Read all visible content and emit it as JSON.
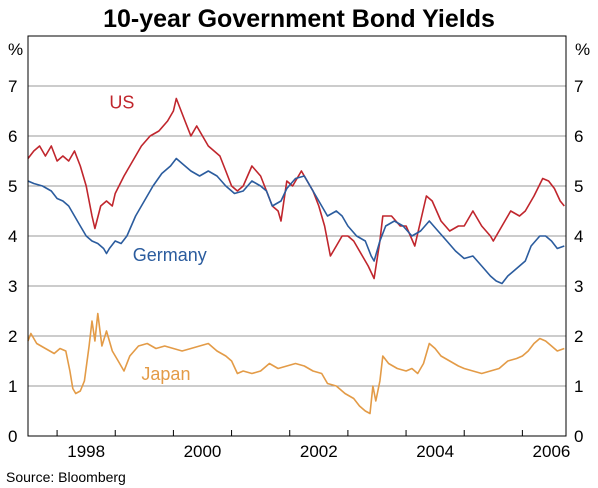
{
  "chart_data": {
    "type": "line",
    "title": "10-year Government Bond Yields",
    "unit_left": "%",
    "unit_right": "%",
    "ylim": [
      0,
      8
    ],
    "yticks": [
      0,
      1,
      2,
      3,
      4,
      5,
      6,
      7
    ],
    "xlim": [
      1997.5,
      2006.75
    ],
    "xticks": [
      {
        "label": "1998",
        "x": 1998
      },
      {
        "label": "2000",
        "x": 2000
      },
      {
        "label": "2002",
        "x": 2002
      },
      {
        "label": "2004",
        "x": 2004
      },
      {
        "label": "2006",
        "x": 2006
      }
    ],
    "grid": true,
    "source": "Source: Bloomberg",
    "series": [
      {
        "name": "US",
        "color": "#c0262d",
        "label_at": [
          1998.9,
          6.55
        ],
        "points": [
          [
            1997.5,
            5.55
          ],
          [
            1997.6,
            5.7
          ],
          [
            1997.7,
            5.8
          ],
          [
            1997.8,
            5.6
          ],
          [
            1997.9,
            5.8
          ],
          [
            1998.0,
            5.5
          ],
          [
            1998.1,
            5.6
          ],
          [
            1998.2,
            5.5
          ],
          [
            1998.3,
            5.7
          ],
          [
            1998.4,
            5.4
          ],
          [
            1998.5,
            5.0
          ],
          [
            1998.6,
            4.4
          ],
          [
            1998.65,
            4.15
          ],
          [
            1998.75,
            4.6
          ],
          [
            1998.85,
            4.7
          ],
          [
            1998.95,
            4.6
          ],
          [
            1999.0,
            4.85
          ],
          [
            1999.15,
            5.2
          ],
          [
            1999.3,
            5.5
          ],
          [
            1999.45,
            5.8
          ],
          [
            1999.6,
            6.0
          ],
          [
            1999.75,
            6.1
          ],
          [
            1999.9,
            6.3
          ],
          [
            2000.0,
            6.5
          ],
          [
            2000.05,
            6.75
          ],
          [
            2000.1,
            6.6
          ],
          [
            2000.2,
            6.3
          ],
          [
            2000.3,
            6.0
          ],
          [
            2000.4,
            6.2
          ],
          [
            2000.5,
            6.0
          ],
          [
            2000.6,
            5.8
          ],
          [
            2000.7,
            5.7
          ],
          [
            2000.8,
            5.6
          ],
          [
            2000.9,
            5.3
          ],
          [
            2001.0,
            5.0
          ],
          [
            2001.1,
            4.9
          ],
          [
            2001.2,
            5.0
          ],
          [
            2001.35,
            5.4
          ],
          [
            2001.5,
            5.2
          ],
          [
            2001.6,
            4.9
          ],
          [
            2001.7,
            4.6
          ],
          [
            2001.8,
            4.5
          ],
          [
            2001.85,
            4.3
          ],
          [
            2001.95,
            5.1
          ],
          [
            2002.05,
            5.0
          ],
          [
            2002.2,
            5.3
          ],
          [
            2002.3,
            5.1
          ],
          [
            2002.4,
            4.9
          ],
          [
            2002.5,
            4.6
          ],
          [
            2002.6,
            4.2
          ],
          [
            2002.7,
            3.6
          ],
          [
            2002.8,
            3.8
          ],
          [
            2002.9,
            4.0
          ],
          [
            2003.0,
            4.0
          ],
          [
            2003.1,
            3.9
          ],
          [
            2003.25,
            3.6
          ],
          [
            2003.35,
            3.4
          ],
          [
            2003.45,
            3.15
          ],
          [
            2003.55,
            3.9
          ],
          [
            2003.6,
            4.4
          ],
          [
            2003.75,
            4.4
          ],
          [
            2003.9,
            4.2
          ],
          [
            2004.0,
            4.2
          ],
          [
            2004.15,
            3.8
          ],
          [
            2004.25,
            4.3
          ],
          [
            2004.35,
            4.8
          ],
          [
            2004.45,
            4.7
          ],
          [
            2004.6,
            4.3
          ],
          [
            2004.75,
            4.1
          ],
          [
            2004.9,
            4.2
          ],
          [
            2005.0,
            4.2
          ],
          [
            2005.15,
            4.5
          ],
          [
            2005.3,
            4.2
          ],
          [
            2005.45,
            4.0
          ],
          [
            2005.5,
            3.9
          ],
          [
            2005.65,
            4.2
          ],
          [
            2005.8,
            4.5
          ],
          [
            2005.95,
            4.4
          ],
          [
            2006.05,
            4.5
          ],
          [
            2006.2,
            4.8
          ],
          [
            2006.35,
            5.15
          ],
          [
            2006.45,
            5.1
          ],
          [
            2006.55,
            4.95
          ],
          [
            2006.65,
            4.7
          ],
          [
            2006.72,
            4.6
          ]
        ]
      },
      {
        "name": "Germany",
        "color": "#2b5c9e",
        "label_at": [
          1999.3,
          3.5
        ],
        "points": [
          [
            1997.5,
            5.1
          ],
          [
            1997.6,
            5.05
          ],
          [
            1997.75,
            5.0
          ],
          [
            1997.9,
            4.9
          ],
          [
            1998.0,
            4.75
          ],
          [
            1998.1,
            4.7
          ],
          [
            1998.2,
            4.6
          ],
          [
            1998.3,
            4.4
          ],
          [
            1998.4,
            4.2
          ],
          [
            1998.5,
            4.0
          ],
          [
            1998.6,
            3.9
          ],
          [
            1998.7,
            3.85
          ],
          [
            1998.8,
            3.75
          ],
          [
            1998.85,
            3.65
          ],
          [
            1998.9,
            3.75
          ],
          [
            1999.0,
            3.9
          ],
          [
            1999.1,
            3.85
          ],
          [
            1999.2,
            4.0
          ],
          [
            1999.35,
            4.4
          ],
          [
            1999.5,
            4.7
          ],
          [
            1999.65,
            5.0
          ],
          [
            1999.8,
            5.25
          ],
          [
            1999.95,
            5.4
          ],
          [
            2000.05,
            5.55
          ],
          [
            2000.15,
            5.45
          ],
          [
            2000.3,
            5.3
          ],
          [
            2000.45,
            5.2
          ],
          [
            2000.6,
            5.3
          ],
          [
            2000.75,
            5.2
          ],
          [
            2000.9,
            5.0
          ],
          [
            2001.05,
            4.85
          ],
          [
            2001.2,
            4.9
          ],
          [
            2001.35,
            5.1
          ],
          [
            2001.5,
            5.0
          ],
          [
            2001.6,
            4.9
          ],
          [
            2001.7,
            4.6
          ],
          [
            2001.85,
            4.7
          ],
          [
            2001.95,
            4.95
          ],
          [
            2002.1,
            5.15
          ],
          [
            2002.25,
            5.2
          ],
          [
            2002.35,
            5.0
          ],
          [
            2002.5,
            4.7
          ],
          [
            2002.65,
            4.4
          ],
          [
            2002.8,
            4.5
          ],
          [
            2002.9,
            4.4
          ],
          [
            2003.0,
            4.2
          ],
          [
            2003.15,
            4.0
          ],
          [
            2003.3,
            3.9
          ],
          [
            2003.4,
            3.6
          ],
          [
            2003.45,
            3.5
          ],
          [
            2003.55,
            3.9
          ],
          [
            2003.65,
            4.2
          ],
          [
            2003.8,
            4.3
          ],
          [
            2003.95,
            4.2
          ],
          [
            2004.1,
            4.0
          ],
          [
            2004.25,
            4.1
          ],
          [
            2004.4,
            4.3
          ],
          [
            2004.55,
            4.1
          ],
          [
            2004.7,
            3.9
          ],
          [
            2004.85,
            3.7
          ],
          [
            2005.0,
            3.55
          ],
          [
            2005.15,
            3.6
          ],
          [
            2005.3,
            3.4
          ],
          [
            2005.45,
            3.2
          ],
          [
            2005.55,
            3.1
          ],
          [
            2005.65,
            3.05
          ],
          [
            2005.75,
            3.2
          ],
          [
            2005.85,
            3.3
          ],
          [
            2005.95,
            3.4
          ],
          [
            2006.05,
            3.5
          ],
          [
            2006.15,
            3.8
          ],
          [
            2006.3,
            4.0
          ],
          [
            2006.4,
            4.0
          ],
          [
            2006.5,
            3.9
          ],
          [
            2006.6,
            3.75
          ],
          [
            2006.72,
            3.8
          ]
        ]
      },
      {
        "name": "Japan",
        "color": "#e39b47",
        "label_at": [
          1999.45,
          1.12
        ],
        "points": [
          [
            1997.5,
            1.9
          ],
          [
            1997.55,
            2.05
          ],
          [
            1997.65,
            1.85
          ],
          [
            1997.8,
            1.75
          ],
          [
            1997.95,
            1.65
          ],
          [
            1998.05,
            1.75
          ],
          [
            1998.15,
            1.7
          ],
          [
            1998.22,
            1.3
          ],
          [
            1998.27,
            0.95
          ],
          [
            1998.32,
            0.85
          ],
          [
            1998.4,
            0.9
          ],
          [
            1998.47,
            1.1
          ],
          [
            1998.55,
            1.8
          ],
          [
            1998.6,
            2.3
          ],
          [
            1998.65,
            1.9
          ],
          [
            1998.7,
            2.45
          ],
          [
            1998.77,
            1.8
          ],
          [
            1998.85,
            2.1
          ],
          [
            1998.95,
            1.7
          ],
          [
            1999.05,
            1.5
          ],
          [
            1999.15,
            1.3
          ],
          [
            1999.25,
            1.6
          ],
          [
            1999.4,
            1.8
          ],
          [
            1999.55,
            1.85
          ],
          [
            1999.7,
            1.75
          ],
          [
            1999.85,
            1.8
          ],
          [
            2000.0,
            1.75
          ],
          [
            2000.15,
            1.7
          ],
          [
            2000.3,
            1.75
          ],
          [
            2000.45,
            1.8
          ],
          [
            2000.6,
            1.85
          ],
          [
            2000.75,
            1.7
          ],
          [
            2000.9,
            1.6
          ],
          [
            2001.0,
            1.5
          ],
          [
            2001.1,
            1.25
          ],
          [
            2001.2,
            1.3
          ],
          [
            2001.35,
            1.25
          ],
          [
            2001.5,
            1.3
          ],
          [
            2001.65,
            1.45
          ],
          [
            2001.8,
            1.35
          ],
          [
            2001.95,
            1.4
          ],
          [
            2002.1,
            1.45
          ],
          [
            2002.25,
            1.4
          ],
          [
            2002.4,
            1.3
          ],
          [
            2002.55,
            1.25
          ],
          [
            2002.65,
            1.05
          ],
          [
            2002.8,
            1.0
          ],
          [
            2002.95,
            0.85
          ],
          [
            2003.1,
            0.75
          ],
          [
            2003.2,
            0.6
          ],
          [
            2003.3,
            0.5
          ],
          [
            2003.38,
            0.45
          ],
          [
            2003.43,
            1.0
          ],
          [
            2003.48,
            0.7
          ],
          [
            2003.55,
            1.1
          ],
          [
            2003.6,
            1.6
          ],
          [
            2003.7,
            1.45
          ],
          [
            2003.85,
            1.35
          ],
          [
            2004.0,
            1.3
          ],
          [
            2004.1,
            1.35
          ],
          [
            2004.2,
            1.25
          ],
          [
            2004.3,
            1.45
          ],
          [
            2004.4,
            1.85
          ],
          [
            2004.5,
            1.75
          ],
          [
            2004.6,
            1.6
          ],
          [
            2004.75,
            1.5
          ],
          [
            2004.9,
            1.4
          ],
          [
            2005.0,
            1.35
          ],
          [
            2005.15,
            1.3
          ],
          [
            2005.3,
            1.25
          ],
          [
            2005.45,
            1.3
          ],
          [
            2005.6,
            1.35
          ],
          [
            2005.75,
            1.5
          ],
          [
            2005.9,
            1.55
          ],
          [
            2006.0,
            1.6
          ],
          [
            2006.1,
            1.7
          ],
          [
            2006.2,
            1.85
          ],
          [
            2006.3,
            1.95
          ],
          [
            2006.4,
            1.9
          ],
          [
            2006.5,
            1.8
          ],
          [
            2006.6,
            1.7
          ],
          [
            2006.72,
            1.75
          ]
        ]
      }
    ]
  }
}
